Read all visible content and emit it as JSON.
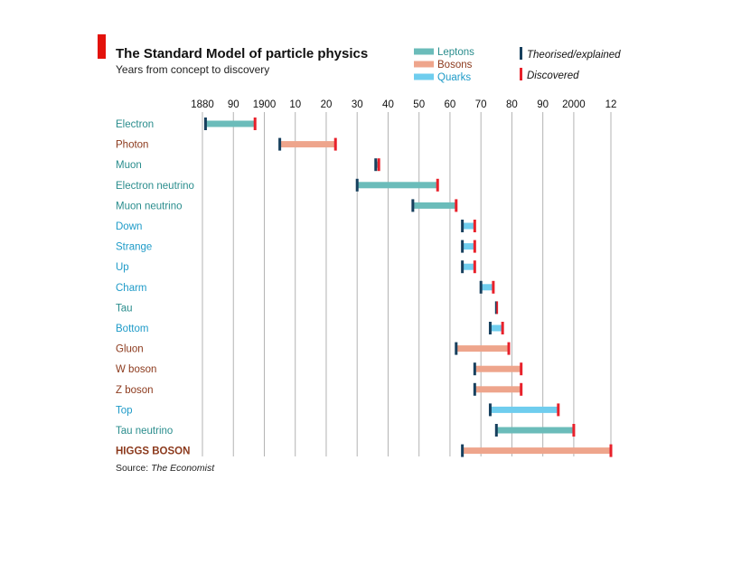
{
  "chart_data": {
    "type": "range-bar",
    "title": "The Standard Model of particle physics",
    "subtitle": "Years from concept to discovery",
    "source_prefix": "Source: ",
    "source_name": "The Economist",
    "xlim": [
      1880,
      2012
    ],
    "x_ticks": [
      1880,
      1890,
      1900,
      1910,
      1920,
      1930,
      1940,
      1950,
      1960,
      1970,
      1980,
      1990,
      2000,
      2012
    ],
    "x_tick_labels": [
      "1880",
      "90",
      "1900",
      "10",
      "20",
      "30",
      "40",
      "50",
      "60",
      "70",
      "80",
      "90",
      "2000",
      "12"
    ],
    "grid": "vertical",
    "legend_position": "top-right",
    "categories_legend": [
      {
        "name": "Leptons",
        "color": "#6bbcba",
        "text_color": "#2a8d8d"
      },
      {
        "name": "Bosons",
        "color": "#eea58c",
        "text_color": "#8c3a1d"
      },
      {
        "name": "Quarks",
        "color": "#6fcdee",
        "text_color": "#1f9bc8"
      }
    ],
    "marker_legend": [
      {
        "name": "Theorised/explained",
        "color": "#17405e"
      },
      {
        "name": "Discovered",
        "color": "#e8212b"
      }
    ],
    "particles": [
      {
        "name": "Electron",
        "group": "Leptons",
        "theorised": 1881,
        "discovered": 1897
      },
      {
        "name": "Photon",
        "group": "Bosons",
        "theorised": 1905,
        "discovered": 1923
      },
      {
        "name": "Muon",
        "group": "Leptons",
        "theorised": 1936,
        "discovered": 1937
      },
      {
        "name": "Electron neutrino",
        "group": "Leptons",
        "theorised": 1930,
        "discovered": 1956
      },
      {
        "name": "Muon neutrino",
        "group": "Leptons",
        "theorised": 1948,
        "discovered": 1962
      },
      {
        "name": "Down",
        "group": "Quarks",
        "theorised": 1964,
        "discovered": 1968
      },
      {
        "name": "Strange",
        "group": "Quarks",
        "theorised": 1964,
        "discovered": 1968
      },
      {
        "name": "Up",
        "group": "Quarks",
        "theorised": 1964,
        "discovered": 1968
      },
      {
        "name": "Charm",
        "group": "Quarks",
        "theorised": 1970,
        "discovered": 1974
      },
      {
        "name": "Tau",
        "group": "Leptons",
        "theorised": 1975,
        "discovered": 1975
      },
      {
        "name": "Bottom",
        "group": "Quarks",
        "theorised": 1973,
        "discovered": 1977
      },
      {
        "name": "Gluon",
        "group": "Bosons",
        "theorised": 1962,
        "discovered": 1979
      },
      {
        "name": "W boson",
        "group": "Bosons",
        "theorised": 1968,
        "discovered": 1983
      },
      {
        "name": "Z boson",
        "group": "Bosons",
        "theorised": 1968,
        "discovered": 1983
      },
      {
        "name": "Top",
        "group": "Quarks",
        "theorised": 1973,
        "discovered": 1995
      },
      {
        "name": "Tau neutrino",
        "group": "Leptons",
        "theorised": 1975,
        "discovered": 2000
      },
      {
        "name": "HIGGS BOSON",
        "group": "Bosons",
        "theorised": 1964,
        "discovered": 2012,
        "bold": true
      }
    ]
  }
}
